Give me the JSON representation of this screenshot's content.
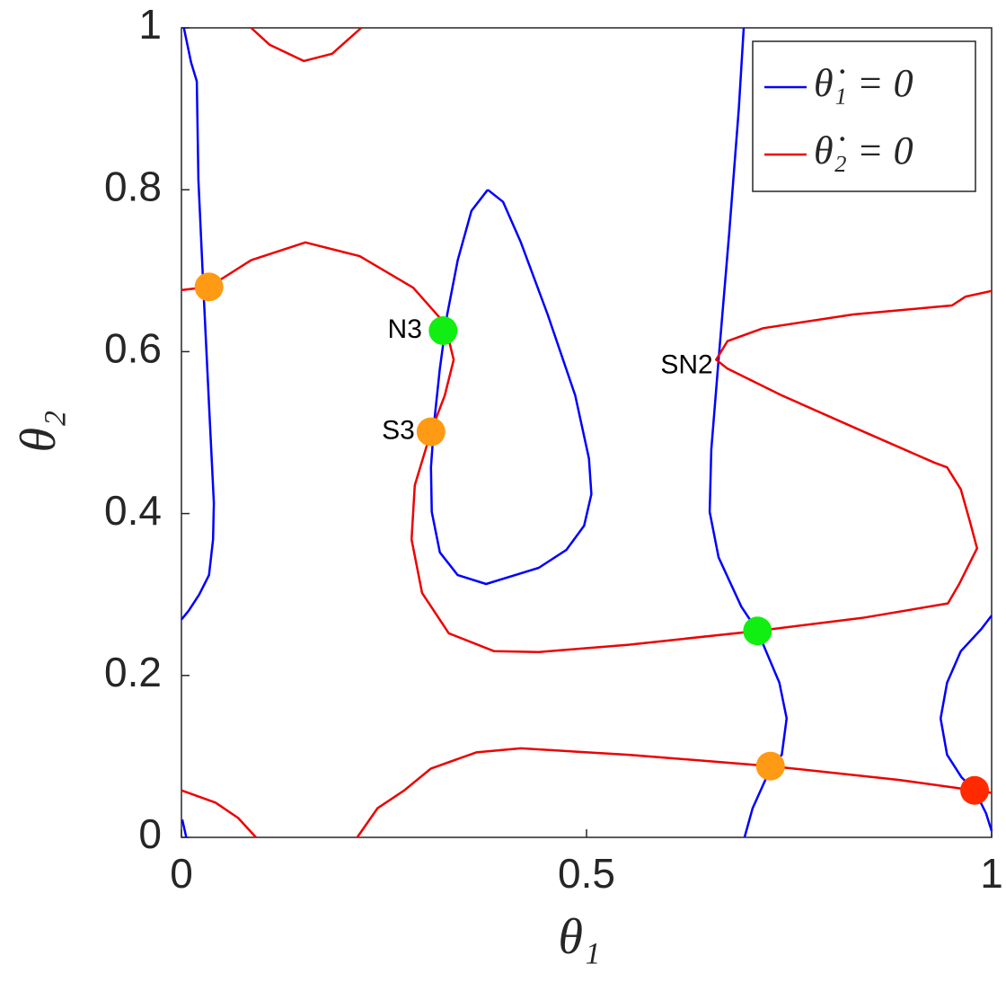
{
  "chart_data": {
    "type": "line",
    "xlabel": "θ₁",
    "ylabel": "θ₂",
    "xlim": [
      0,
      1
    ],
    "ylim": [
      0,
      1
    ],
    "xticks": [
      0,
      0.5,
      1
    ],
    "yticks": [
      0,
      0.2,
      0.4,
      0.6,
      0.8,
      1
    ],
    "grid": false,
    "legend": "upper right",
    "series": [
      {
        "name": "θ̇₁ = 0",
        "color": "#0000ff",
        "x": [
          0.003,
          0.012,
          0.019,
          0.021,
          0.027,
          0.034,
          0.04,
          0.039,
          0.034,
          0.022,
          0.009,
          0,
          null,
          0.001,
          0.006,
          null,
          0.378,
          0.397,
          0.419,
          0.452,
          0.486,
          0.503,
          0.506,
          0.497,
          0.475,
          0.441,
          0.376,
          0.341,
          0.319,
          0.309,
          0.308,
          0.312,
          0.319,
          0.328,
          0.341,
          0.358,
          0.378,
          null,
          0.694,
          0.688,
          0.676,
          0.663,
          0.654,
          0.652,
          0.663,
          0.691,
          0.711,
          0.738,
          0.747,
          0.741,
          0.727,
          0.705,
          0.695,
          null,
          1,
          0.987,
          0.962,
          0.945,
          0.937,
          0.945,
          0.963,
          0.979,
          0.993,
          1
        ],
        "values": [
          1.0,
          0.957,
          0.934,
          0.812,
          0.679,
          0.535,
          0.413,
          0.368,
          0.324,
          0.3,
          0.28,
          0.269,
          null,
          0.022,
          0,
          null,
          0.8,
          0.785,
          0.735,
          0.646,
          0.546,
          0.468,
          0.424,
          0.385,
          0.355,
          0.333,
          0.313,
          0.324,
          0.352,
          0.402,
          0.457,
          0.513,
          0.579,
          0.646,
          0.713,
          0.774,
          0.8,
          null,
          1.0,
          0.901,
          0.746,
          0.59,
          0.479,
          0.402,
          0.346,
          0.285,
          0.255,
          0.191,
          0.147,
          0.102,
          0.085,
          0.036,
          0,
          null,
          0.274,
          0.257,
          0.23,
          0.191,
          0.147,
          0.102,
          0.074,
          0.058,
          0.03,
          0.008
        ]
      },
      {
        "name": "θ̇₂ = 0",
        "color": "#ee0000",
        "x": [
          0.086,
          0.109,
          0.151,
          0.186,
          0.222,
          null,
          0,
          0.034,
          0.086,
          0.153,
          0.22,
          0.286,
          0.325,
          0.336,
          0.325,
          0.308,
          0.288,
          0.284,
          0.297,
          0.33,
          0.386,
          0.441,
          0.552,
          0.711,
          0.84,
          0.946,
          0.96,
          0.971,
          0.982,
          0.973,
          0.962,
          0.945,
          0.929,
          0.84,
          0.741,
          0.674,
          0.66,
          0.674,
          0.718,
          0.829,
          0.929,
          0.951,
          0.968,
          1,
          null,
          0.217,
          0.242,
          0.275,
          0.308,
          0.364,
          0.419,
          0.552,
          0.727,
          0.885,
          0.979,
          1,
          null,
          0,
          0.042,
          0.07,
          0.092
        ],
        "values": [
          1.0,
          0.979,
          0.959,
          0.968,
          1.0,
          null,
          0.676,
          0.68,
          0.713,
          0.735,
          0.718,
          0.679,
          0.635,
          0.59,
          0.546,
          0.501,
          0.435,
          0.368,
          0.302,
          0.252,
          0.23,
          0.229,
          0.238,
          0.255,
          0.271,
          0.289,
          0.313,
          0.335,
          0.357,
          0.391,
          0.43,
          0.457,
          0.463,
          0.502,
          0.546,
          0.579,
          0.59,
          0.613,
          0.629,
          0.646,
          0.655,
          0.657,
          0.668,
          0.675,
          null,
          0,
          0.036,
          0.058,
          0.085,
          0.105,
          0.11,
          0.102,
          0.088,
          0.071,
          0.058,
          0.055,
          null,
          0.058,
          0.043,
          0.024,
          0
        ]
      }
    ],
    "points": {
      "x": [
        0.034,
        0.323,
        0.308,
        0.711,
        0.727,
        0.979
      ],
      "values": [
        0.68,
        0.626,
        0.501,
        0.255,
        0.088,
        0.058
      ],
      "colors": [
        "#ff9a14",
        "#11ee11",
        "#ff9a14",
        "#11ee11",
        "#ff9a14",
        "#ff2a00"
      ]
    },
    "annotations": [
      {
        "text": "N3",
        "x": 0.297,
        "y": 0.626
      },
      {
        "text": "S3",
        "x": 0.288,
        "y": 0.501
      },
      {
        "text": "SN2",
        "x": 0.656,
        "y": 0.582
      }
    ]
  }
}
